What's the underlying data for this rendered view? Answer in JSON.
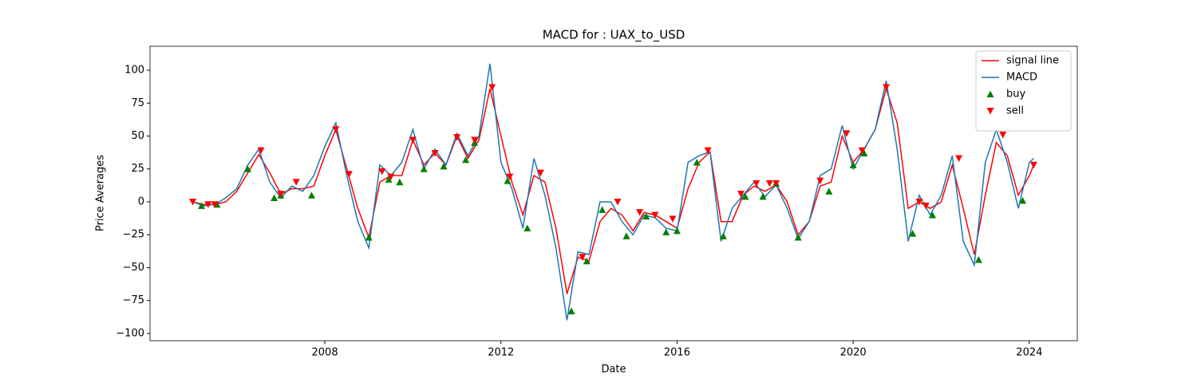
{
  "chart_data": {
    "type": "line",
    "title": "MACD for : UAX_to_USD",
    "x_label": "Date",
    "y_label": "Price Averages",
    "xlim": [
      2004.03,
      2025.09
    ],
    "ylim": [
      -105.5,
      118.2
    ],
    "xticks": [
      2008,
      2012,
      2016,
      2020,
      2024
    ],
    "yticks": [
      {
        "value": -100,
        "label": "−100"
      },
      {
        "value": -75,
        "label": "−75"
      },
      {
        "value": -50,
        "label": "−50"
      },
      {
        "value": -25,
        "label": "−25"
      },
      0,
      25,
      50,
      75,
      100
    ],
    "legend": "upper right",
    "x": [
      2005.0,
      2005.25,
      2005.5,
      2005.75,
      2006.0,
      2006.25,
      2006.5,
      2006.75,
      2007.0,
      2007.25,
      2007.5,
      2007.75,
      2008.0,
      2008.25,
      2008.5,
      2008.75,
      2009.0,
      2009.25,
      2009.5,
      2009.75,
      2010.0,
      2010.25,
      2010.5,
      2010.75,
      2011.0,
      2011.25,
      2011.5,
      2011.75,
      2012.0,
      2012.25,
      2012.5,
      2012.75,
      2013.0,
      2013.25,
      2013.5,
      2013.75,
      2014.0,
      2014.25,
      2014.5,
      2014.75,
      2015.0,
      2015.25,
      2015.5,
      2015.75,
      2016.0,
      2016.25,
      2016.5,
      2016.75,
      2017.0,
      2017.25,
      2017.5,
      2017.75,
      2018.0,
      2018.25,
      2018.5,
      2018.75,
      2019.0,
      2019.25,
      2019.5,
      2019.75,
      2020.0,
      2020.25,
      2020.5,
      2020.75,
      2021.0,
      2021.25,
      2021.5,
      2021.75,
      2022.0,
      2022.25,
      2022.5,
      2022.75,
      2023.0,
      2023.25,
      2023.5,
      2023.75,
      2024.0,
      2024.1
    ],
    "series": [
      {
        "name": "signal line",
        "color": "#ff0000",
        "values": [
          0,
          -2,
          -2,
          0,
          8,
          22,
          36,
          22,
          6,
          10,
          10,
          12,
          35,
          55,
          25,
          -5,
          -27,
          15,
          20,
          20,
          47,
          28,
          37,
          28,
          50,
          33,
          47,
          86,
          50,
          15,
          -10,
          20,
          15,
          -20,
          -70,
          -42,
          -45,
          -15,
          -5,
          -10,
          -22,
          -8,
          -10,
          -15,
          -20,
          10,
          30,
          38,
          -15,
          -15,
          5,
          12,
          8,
          13,
          0,
          -25,
          -15,
          12,
          15,
          50,
          30,
          40,
          55,
          86,
          60,
          -5,
          0,
          -5,
          0,
          28,
          -5,
          -40,
          5,
          45,
          35,
          5,
          20,
          28
        ]
      },
      {
        "name": "MACD",
        "color": "#1f77b4",
        "values": [
          0,
          -3,
          -2,
          3,
          10,
          28,
          40,
          15,
          3,
          12,
          8,
          20,
          42,
          60,
          20,
          -15,
          -35,
          28,
          20,
          30,
          55,
          25,
          40,
          28,
          52,
          35,
          50,
          105,
          30,
          10,
          -20,
          33,
          5,
          -35,
          -90,
          -38,
          -40,
          0,
          0,
          -15,
          -25,
          -10,
          -12,
          -20,
          -22,
          30,
          35,
          38,
          -30,
          -5,
          5,
          15,
          4,
          13,
          -5,
          -28,
          -15,
          20,
          25,
          58,
          25,
          40,
          55,
          92,
          40,
          -30,
          5,
          -10,
          5,
          35,
          -30,
          -48,
          30,
          55,
          30,
          -5,
          30,
          33
        ]
      },
      {
        "name": "buy",
        "type": "scatter",
        "marker": "^",
        "color": "#008000",
        "x": [
          2005.2,
          2005.55,
          2006.25,
          2006.85,
          2007.0,
          2007.7,
          2009.0,
          2009.45,
          2009.7,
          2010.25,
          2010.7,
          2011.2,
          2011.4,
          2012.15,
          2012.6,
          2013.6,
          2013.95,
          2014.3,
          2014.85,
          2015.3,
          2015.75,
          2016.0,
          2016.45,
          2017.05,
          2017.55,
          2017.95,
          2018.25,
          2018.75,
          2019.45,
          2020.0,
          2020.25,
          2021.35,
          2021.8,
          2022.85,
          2023.85
        ],
        "values": [
          -3,
          -2,
          25,
          3,
          5,
          5,
          -27,
          17,
          15,
          25,
          27,
          32,
          45,
          16,
          -20,
          -83,
          -45,
          -6,
          -26,
          -11,
          -23,
          -22,
          30,
          -26,
          4,
          4,
          14,
          -27,
          8,
          28,
          37,
          -24,
          -10,
          -44,
          1
        ]
      },
      {
        "name": "sell",
        "type": "scatter",
        "marker": "v",
        "color": "#ff0000",
        "x": [
          2005.0,
          2005.35,
          2005.5,
          2006.55,
          2007.0,
          2007.35,
          2008.25,
          2008.55,
          2009.3,
          2009.5,
          2010.0,
          2010.5,
          2011.0,
          2011.4,
          2011.8,
          2012.2,
          2012.9,
          2013.85,
          2014.65,
          2015.15,
          2015.5,
          2015.9,
          2016.7,
          2017.45,
          2017.8,
          2018.1,
          2018.25,
          2019.25,
          2019.85,
          2020.2,
          2020.75,
          2021.5,
          2021.65,
          2022.4,
          2023.4,
          2024.1
        ],
        "values": [
          0,
          -2,
          -2,
          39,
          6,
          15,
          55,
          21,
          23,
          19,
          47,
          37,
          49,
          47,
          87,
          19,
          22,
          -42,
          0,
          -8,
          -10,
          -13,
          39,
          6,
          14,
          14,
          14,
          16,
          52,
          39,
          87,
          0,
          -3,
          33,
          51,
          28
        ]
      }
    ]
  }
}
